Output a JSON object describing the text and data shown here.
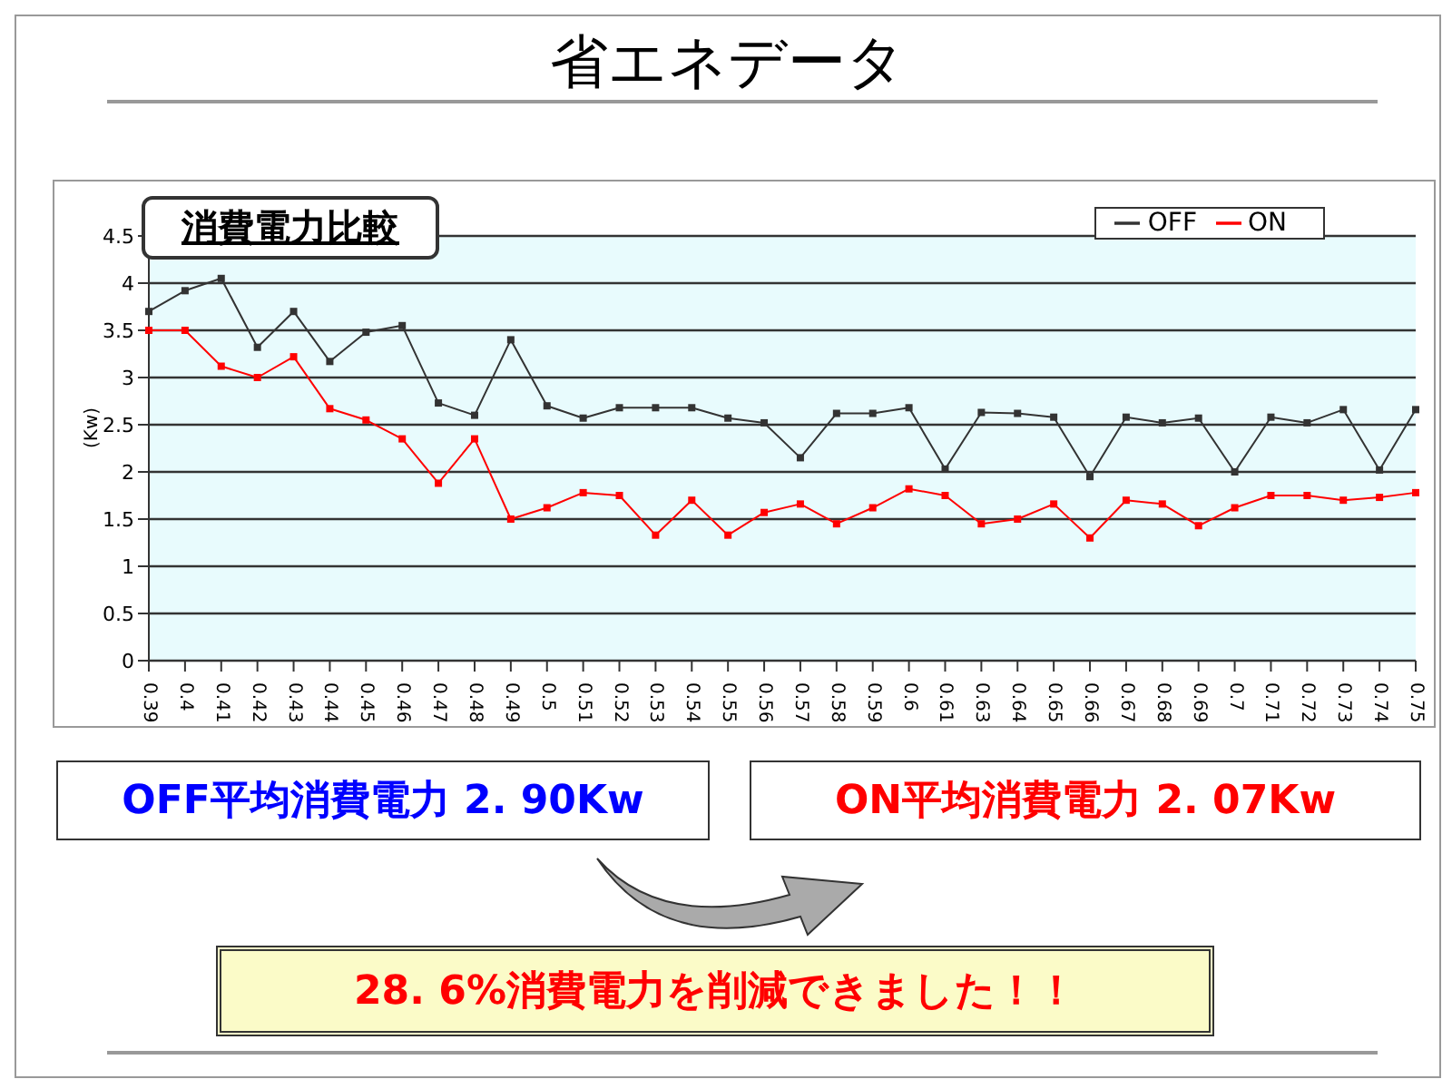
{
  "chart_data": {
    "type": "line",
    "title": "省エネデータ",
    "subtitle": "消費電力比較",
    "ylabel": "(Kw)",
    "categories": [
      "0.39",
      "0.4",
      "0.41",
      "0.42",
      "0.43",
      "0.44",
      "0.45",
      "0.46",
      "0.47",
      "0.48",
      "0.49",
      "0.5",
      "0.51",
      "0.52",
      "0.53",
      "0.54",
      "0.55",
      "0.56",
      "0.57",
      "0.58",
      "0.59",
      "0.6",
      "0.61",
      "0.63",
      "0.64",
      "0.65",
      "0.66",
      "0.67",
      "0.68",
      "0.69",
      "0.7",
      "0.71",
      "0.72",
      "0.73",
      "0.74",
      "0.75"
    ],
    "series": [
      {
        "name": "OFF",
        "color": "#333333",
        "values": [
          3.7,
          3.92,
          4.05,
          3.32,
          3.7,
          3.17,
          3.48,
          3.55,
          2.73,
          2.6,
          3.4,
          2.7,
          2.57,
          2.68,
          2.68,
          2.68,
          2.57,
          2.52,
          2.15,
          2.62,
          2.62,
          2.68,
          2.03,
          2.63,
          2.62,
          2.58,
          1.95,
          2.58,
          2.52,
          2.57,
          2.0,
          2.58,
          2.52,
          2.66,
          2.02,
          2.66
        ]
      },
      {
        "name": "ON",
        "color": "#ff0000",
        "values": [
          3.5,
          3.5,
          3.12,
          3.0,
          3.22,
          2.67,
          2.55,
          2.35,
          1.88,
          2.35,
          1.5,
          1.62,
          1.78,
          1.75,
          1.33,
          1.7,
          1.33,
          1.57,
          1.66,
          1.45,
          1.62,
          1.82,
          1.75,
          1.45,
          1.5,
          1.66,
          1.3,
          1.7,
          1.66,
          1.43,
          1.62,
          1.75,
          1.75,
          1.7,
          1.73,
          1.78
        ]
      }
    ],
    "ylim": [
      0,
      4.5
    ],
    "yticks": [
      0,
      0.5,
      1,
      1.5,
      2,
      2.5,
      3,
      3.5,
      4,
      4.5
    ],
    "grid": "y",
    "legend": "top right",
    "marker": "square",
    "line_style": "solid",
    "annotations": [
      "OFF平均消費電力 2. 90Kw",
      "ON平均消費電力 2. 07Kw",
      "28. 6%消費電力を削減できました！！"
    ]
  }
}
